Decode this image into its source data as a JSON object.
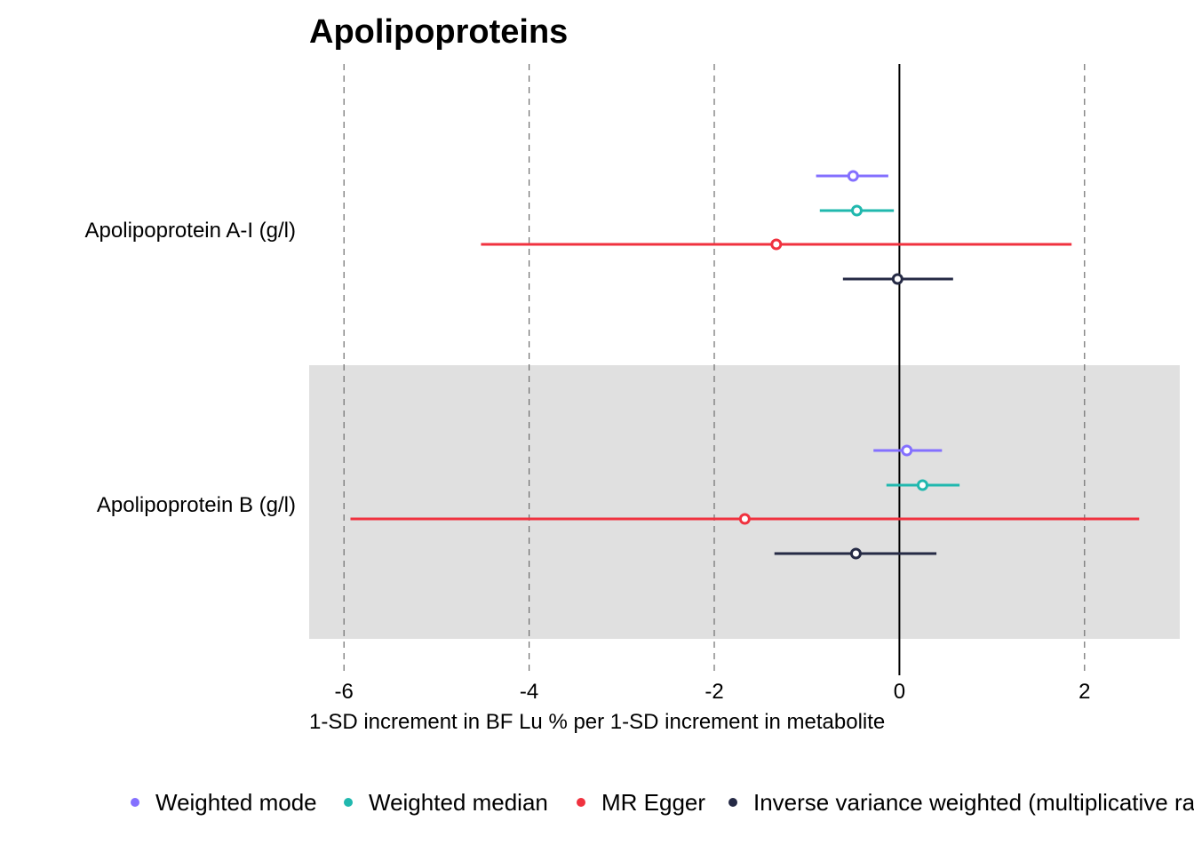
{
  "chart_data": {
    "type": "forest",
    "title": "Apolipoproteins",
    "xlabel": "1-SD increment in BF Lu % per 1-SD increment in metabolite",
    "xlim": [
      -6.35,
      3.05
    ],
    "xticks": [
      -6,
      -4,
      -2,
      0,
      2
    ],
    "xtick_labels": [
      "-6",
      "-4",
      "-2",
      "0",
      "2"
    ],
    "reference_line": 0,
    "grid": "vertical dashed at major ticks",
    "legend_position": "bottom",
    "categories": [
      "Apolipoprotein A-I (g/l)",
      "Apolipoprotein B (g/l)"
    ],
    "shaded_category": "Apolipoprotein B (g/l)",
    "series": [
      {
        "name": "Weighted mode",
        "color": "#8470FF",
        "points": [
          {
            "category": "Apolipoprotein A-I (g/l)",
            "estimate": -0.5,
            "lower": -0.9,
            "upper": -0.12
          },
          {
            "category": "Apolipoprotein B (g/l)",
            "estimate": 0.08,
            "lower": -0.28,
            "upper": 0.46
          }
        ]
      },
      {
        "name": "Weighted median",
        "color": "#20B8AE",
        "points": [
          {
            "category": "Apolipoprotein A-I (g/l)",
            "estimate": -0.46,
            "lower": -0.86,
            "upper": -0.06
          },
          {
            "category": "Apolipoprotein B (g/l)",
            "estimate": 0.25,
            "lower": -0.14,
            "upper": 0.65
          }
        ]
      },
      {
        "name": "MR Egger",
        "color": "#F0323F",
        "points": [
          {
            "category": "Apolipoprotein A-I (g/l)",
            "estimate": -1.33,
            "lower": -4.52,
            "upper": 1.86
          },
          {
            "category": "Apolipoprotein B (g/l)",
            "estimate": -1.67,
            "lower": -5.93,
            "upper": 2.59
          }
        ]
      },
      {
        "name": "Inverse variance weighted (multiplicative random effects)",
        "color": "#252A45",
        "points": [
          {
            "category": "Apolipoprotein A-I (g/l)",
            "estimate": -0.02,
            "lower": -0.61,
            "upper": 0.58
          },
          {
            "category": "Apolipoprotein B (g/l)",
            "estimate": -0.47,
            "lower": -1.35,
            "upper": 0.4
          }
        ]
      }
    ]
  }
}
